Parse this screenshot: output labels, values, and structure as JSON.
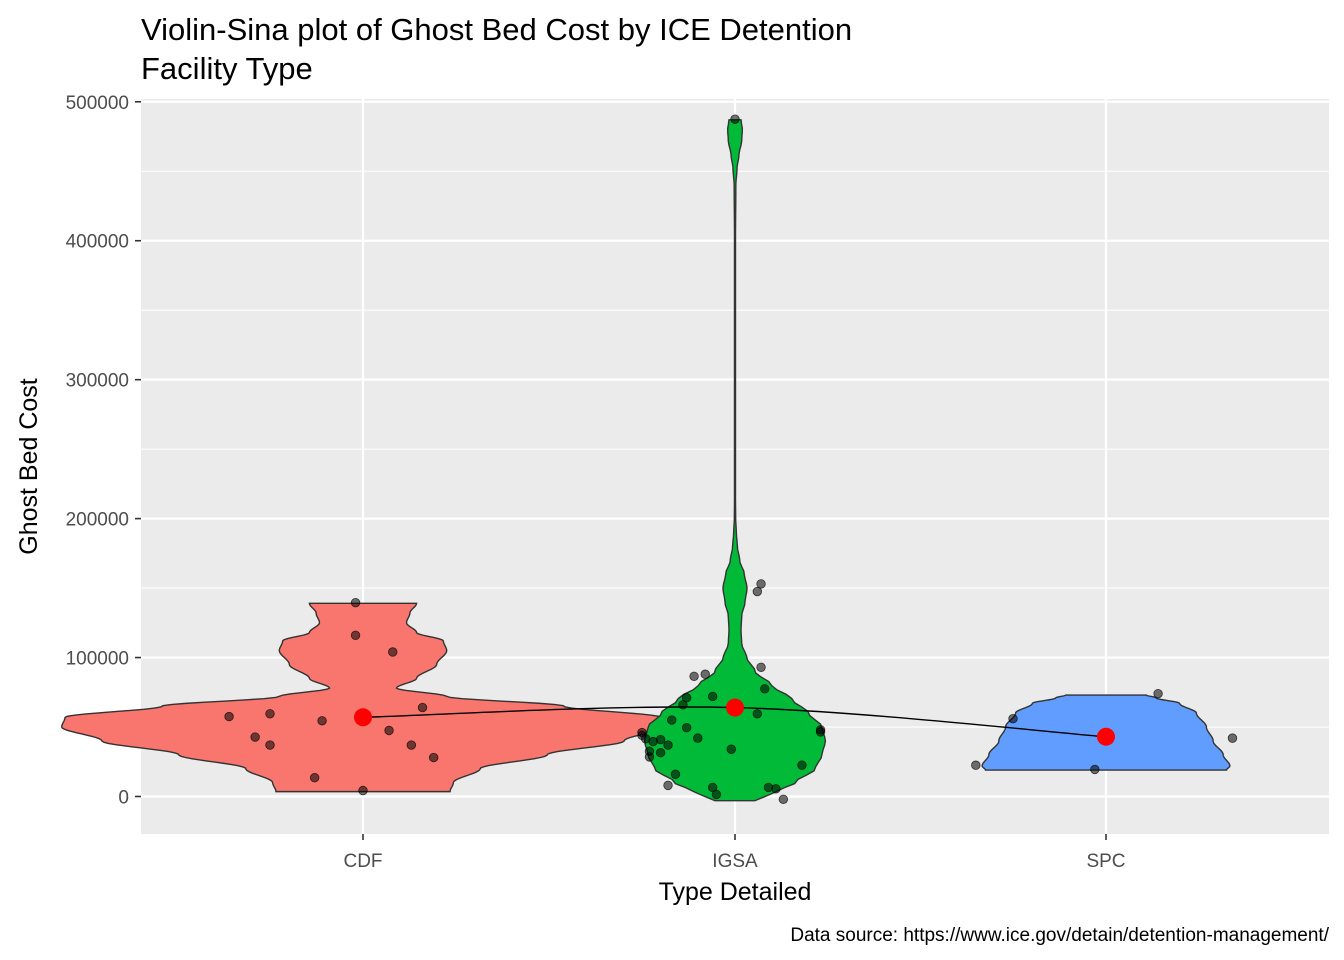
{
  "chart_data": {
    "type": "violin-sina",
    "title_lines": [
      "Violin-Sina plot of Ghost Bed Cost by ICE Detention",
      "Facility Type"
    ],
    "xlabel": "Type Detailed",
    "ylabel": "Ghost Bed Cost",
    "caption": "Data source: https://www.ice.gov/detain/detention-management/",
    "categories": [
      "CDF",
      "IGSA",
      "SPC"
    ],
    "ylim": [
      -27000,
      502000
    ],
    "yticks": [
      0,
      100000,
      200000,
      300000,
      400000,
      500000
    ],
    "ytick_labels": [
      "0",
      "100000",
      "200000",
      "300000",
      "400000",
      "500000"
    ],
    "grid": true,
    "legend": "none",
    "colors": {
      "panel": "#EBEBEB",
      "grid": "#FFFFFF",
      "CDF": "#F8766D",
      "IGSA": "#00BA38",
      "SPC": "#619CFF",
      "mean": "#FF0000",
      "point": "#000000"
    },
    "means": [
      57000,
      64000,
      43000
    ],
    "violins": [
      {
        "name": "CDF",
        "ymin": 3500,
        "ymax": 139000,
        "profile": [
          [
            3500,
            0.26
          ],
          [
            10000,
            0.27
          ],
          [
            20000,
            0.35
          ],
          [
            30000,
            0.55
          ],
          [
            40000,
            0.78
          ],
          [
            50000,
            0.9
          ],
          [
            57000,
            0.89
          ],
          [
            65000,
            0.6
          ],
          [
            72000,
            0.25
          ],
          [
            78000,
            0.1
          ],
          [
            85000,
            0.16
          ],
          [
            95000,
            0.22
          ],
          [
            105000,
            0.25
          ],
          [
            112000,
            0.24
          ],
          [
            118000,
            0.16
          ],
          [
            125000,
            0.13
          ],
          [
            132000,
            0.14
          ],
          [
            139000,
            0.16
          ]
        ]
      },
      {
        "name": "IGSA",
        "ymin": -3000,
        "ymax": 487000,
        "profile": [
          [
            -3000,
            0.06
          ],
          [
            3000,
            0.12
          ],
          [
            10000,
            0.18
          ],
          [
            20000,
            0.24
          ],
          [
            30000,
            0.26
          ],
          [
            40000,
            0.27
          ],
          [
            50000,
            0.26
          ],
          [
            60000,
            0.22
          ],
          [
            70000,
            0.17
          ],
          [
            80000,
            0.11
          ],
          [
            90000,
            0.06
          ],
          [
            100000,
            0.035
          ],
          [
            110000,
            0.02
          ],
          [
            120000,
            0.018
          ],
          [
            130000,
            0.02
          ],
          [
            140000,
            0.03
          ],
          [
            150000,
            0.036
          ],
          [
            160000,
            0.028
          ],
          [
            170000,
            0.014
          ],
          [
            180000,
            0.007
          ],
          [
            190000,
            0.004
          ],
          [
            200000,
            0.002
          ],
          [
            215000,
            0.0015
          ],
          [
            400000,
            0.0015
          ],
          [
            440000,
            0.0025
          ],
          [
            452000,
            0.006
          ],
          [
            462000,
            0.012
          ],
          [
            472000,
            0.02
          ],
          [
            480000,
            0.022
          ],
          [
            487000,
            0.018
          ]
        ]
      },
      {
        "name": "SPC",
        "ymin": 19000,
        "ymax": 73000,
        "profile": [
          [
            19000,
            0.36
          ],
          [
            22000,
            0.37
          ],
          [
            30000,
            0.35
          ],
          [
            40000,
            0.32
          ],
          [
            50000,
            0.3
          ],
          [
            60000,
            0.27
          ],
          [
            67000,
            0.22
          ],
          [
            71000,
            0.15
          ],
          [
            73000,
            0.12
          ]
        ]
      }
    ],
    "points": [
      [
        [
          -0.36,
          57500
        ],
        [
          -0.29,
          42800
        ],
        [
          -0.25,
          37000
        ],
        [
          -0.25,
          59500
        ],
        [
          -0.13,
          13500
        ],
        [
          -0.11,
          54500
        ],
        [
          0.0,
          4300
        ],
        [
          -0.02,
          139500
        ],
        [
          -0.02,
          116000
        ],
        [
          0.07,
          47500
        ],
        [
          0.08,
          104000
        ],
        [
          0.13,
          37000
        ],
        [
          0.16,
          64000
        ],
        [
          0.19,
          28000
        ]
      ],
      [
        [
          -0.25,
          46000
        ],
        [
          -0.25,
          44000
        ],
        [
          -0.24,
          41500
        ],
        [
          -0.23,
          32500
        ],
        [
          -0.23,
          28500
        ],
        [
          -0.22,
          39500
        ],
        [
          -0.2,
          31500
        ],
        [
          -0.17,
          55000
        ],
        [
          -0.2,
          41000
        ],
        [
          -0.18,
          37000
        ],
        [
          -0.18,
          8000
        ],
        [
          -0.16,
          16000
        ],
        [
          -0.14,
          66000
        ],
        [
          -0.13,
          49500
        ],
        [
          -0.13,
          71000
        ],
        [
          -0.11,
          86500
        ],
        [
          -0.08,
          88000
        ],
        [
          -0.1,
          42000
        ],
        [
          -0.06,
          72000
        ],
        [
          -0.06,
          6500
        ],
        [
          -0.05,
          1500
        ],
        [
          0.0,
          487500
        ],
        [
          -0.01,
          34000
        ],
        [
          0.06,
          59500
        ],
        [
          0.06,
          147500
        ],
        [
          0.07,
          153000
        ],
        [
          0.07,
          93000
        ],
        [
          0.08,
          77500
        ],
        [
          0.09,
          6500
        ],
        [
          0.11,
          5500
        ],
        [
          0.13,
          -2000
        ],
        [
          0.18,
          22500
        ],
        [
          0.23,
          46500
        ],
        [
          0.23,
          48000
        ]
      ],
      [
        [
          -0.35,
          22500
        ],
        [
          -0.25,
          56000
        ],
        [
          -0.03,
          19500
        ],
        [
          0.14,
          74000
        ],
        [
          0.34,
          42000
        ]
      ]
    ]
  }
}
